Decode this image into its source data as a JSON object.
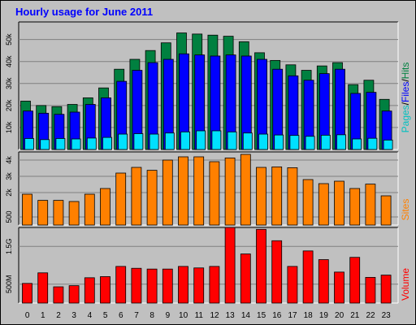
{
  "chart_data": {
    "type": "bar",
    "title": "Hourly usage for June 2011",
    "categories": [
      "0",
      "1",
      "2",
      "3",
      "4",
      "5",
      "6",
      "7",
      "8",
      "9",
      "10",
      "11",
      "12",
      "13",
      "14",
      "15",
      "16",
      "17",
      "18",
      "19",
      "20",
      "21",
      "22",
      "23"
    ],
    "colors": {
      "hits": "#008040",
      "files": "#0000ff",
      "pages": "#00e0ff",
      "sites": "#ff8000",
      "volume": "#ff0000",
      "legend_pages": "#00c0c0",
      "legend_files": "#0000ff",
      "legend_hits": "#008040",
      "legend_sites": "#ff8000",
      "legend_volume": "#ff0000"
    },
    "panels": [
      {
        "id": "hits-files-pages",
        "y_ticks": [
          10000,
          20000,
          30000,
          40000,
          50000
        ],
        "y_tick_labels": [
          "10k",
          "20k",
          "30k",
          "40k",
          "50k"
        ],
        "ylim": [
          0,
          58000
        ],
        "legend": [
          "Pages",
          "Files",
          "Hits"
        ],
        "series": [
          {
            "name": "Hits",
            "values": [
              22000,
              20000,
              19500,
              20500,
              23500,
              28000,
              36500,
              41000,
              45000,
              48500,
              53000,
              52500,
              52000,
              51500,
              49000,
              44000,
              40500,
              38500,
              36000,
              38000,
              39500,
              29500,
              31500,
              22800
            ]
          },
          {
            "name": "Files",
            "values": [
              17500,
              16500,
              16000,
              17000,
              20500,
              23500,
              31000,
              36000,
              39500,
              41000,
              43500,
              43000,
              42500,
              43000,
              42500,
              41000,
              36500,
              33500,
              31500,
              34500,
              36500,
              25500,
              26000,
              17500
            ]
          },
          {
            "name": "Pages",
            "values": [
              5000,
              4500,
              5000,
              4800,
              5200,
              5500,
              7000,
              7200,
              7000,
              7500,
              8000,
              8500,
              8500,
              8000,
              7500,
              7000,
              6600,
              6400,
              6000,
              6500,
              6700,
              4800,
              5100,
              4300
            ]
          }
        ]
      },
      {
        "id": "sites",
        "y_ticks": [
          500,
          2000,
          3000,
          4000
        ],
        "y_tick_labels": [
          "500",
          "2k",
          "3k",
          "4k"
        ],
        "ylim": [
          0,
          4500
        ],
        "legend": [
          "Sites"
        ],
        "series": [
          {
            "name": "Sites",
            "values": [
              1900,
              1520,
              1520,
              1450,
              1900,
              2250,
              3200,
              3550,
              3370,
              4000,
              4200,
              4200,
              3900,
              4130,
              4350,
              3550,
              3580,
              3530,
              2800,
              2550,
              2700,
              2250,
              2520,
              1800
            ]
          }
        ]
      },
      {
        "id": "volume",
        "y_ticks": [
          500,
          1500
        ],
        "y_tick_labels": [
          "500M",
          "1.5G"
        ],
        "ylim": [
          0,
          2000
        ],
        "legend": [
          "Volume"
        ],
        "series": [
          {
            "name": "Volume",
            "values": [
              520,
              800,
              430,
              460,
              670,
              700,
              970,
              920,
              900,
              900,
              970,
              930,
              970,
              2000,
              1300,
              1950,
              1650,
              970,
              1380,
              1150,
              820,
              1210,
              680,
              740
            ]
          }
        ]
      }
    ]
  }
}
